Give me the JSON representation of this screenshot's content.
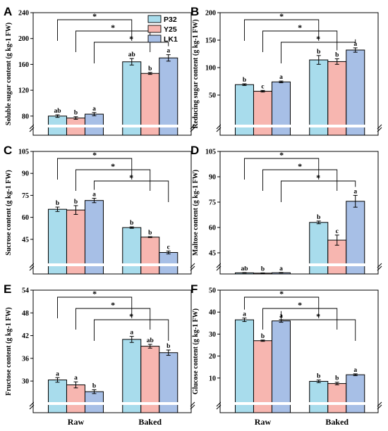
{
  "legend": [
    {
      "name": "P32",
      "color": "#a8dcec"
    },
    {
      "name": "Y25",
      "color": "#f7b6b0"
    },
    {
      "name": "LK1",
      "color": "#a7bfe6"
    }
  ],
  "categories": [
    "Raw",
    "Baked"
  ],
  "star_symbol": "*",
  "chart_data": [
    {
      "type": "bar",
      "panel": "A",
      "ylabel": "Soluble sugar content (g kg-1 FW)",
      "y_broken": true,
      "ylim": [
        70,
        240
      ],
      "yticks": [
        80,
        120,
        160,
        200,
        240
      ],
      "categories": [
        "Raw",
        "Baked"
      ],
      "series": [
        {
          "name": "P32",
          "values": [
            80,
            164
          ],
          "errors": [
            2,
            5
          ],
          "letters": [
            "ab",
            "ab"
          ]
        },
        {
          "name": "Y25",
          "values": [
            77,
            146
          ],
          "errors": [
            2,
            1.5
          ],
          "letters": [
            "b",
            "b"
          ]
        },
        {
          "name": "LK1",
          "values": [
            83,
            170
          ],
          "errors": [
            2.5,
            5
          ],
          "letters": [
            "a",
            "a"
          ]
        }
      ],
      "significance": [
        "*",
        "*",
        "*"
      ]
    },
    {
      "type": "bar",
      "panel": "B",
      "ylabel": "Reducing sugar content (g kg-1 FW)",
      "y_broken": true,
      "ylim": [
        0,
        200
      ],
      "yticks": [
        50,
        100,
        150,
        200
      ],
      "categories": [
        "Raw",
        "Baked"
      ],
      "series": [
        {
          "name": "P32",
          "values": [
            69,
            114
          ],
          "errors": [
            1.5,
            8
          ],
          "letters": [
            "b",
            "b"
          ]
        },
        {
          "name": "Y25",
          "values": [
            57,
            111
          ],
          "errors": [
            1.5,
            5
          ],
          "letters": [
            "c",
            "b"
          ]
        },
        {
          "name": "LK1",
          "values": [
            74,
            132
          ],
          "errors": [
            1.5,
            4
          ],
          "letters": [
            "a",
            "a"
          ]
        }
      ],
      "significance": [
        "*",
        "*",
        "*"
      ]
    },
    {
      "type": "bar",
      "panel": "C",
      "ylabel": "Sucrose content (g kg-1 FW)",
      "y_broken": true,
      "ylim": [
        30,
        105
      ],
      "yticks": [
        45,
        60,
        75,
        90,
        105
      ],
      "categories": [
        "Raw",
        "Baked"
      ],
      "series": [
        {
          "name": "P32",
          "values": [
            65.5,
            53
          ],
          "errors": [
            1.5,
            0.5
          ],
          "letters": [
            "b",
            "b"
          ]
        },
        {
          "name": "Y25",
          "values": [
            65,
            46.5
          ],
          "errors": [
            3,
            0.3
          ],
          "letters": [
            "b",
            "b"
          ]
        },
        {
          "name": "LK1",
          "values": [
            71.5,
            36
          ],
          "errors": [
            1.5,
            1
          ],
          "letters": [
            "a",
            "c"
          ]
        }
      ],
      "significance": [
        "*",
        "*",
        "*"
      ]
    },
    {
      "type": "bar",
      "panel": "D",
      "ylabel": "Maltose content (g kg-1 FW)",
      "y_broken": true,
      "ylim": [
        40,
        105
      ],
      "yticks": [
        45,
        60,
        75,
        90,
        105
      ],
      "categories": [
        "Raw",
        "Baked"
      ],
      "series": [
        {
          "name": "P32",
          "values": [
            3.5,
            63
          ],
          "errors": [
            0.8,
            0.8
          ],
          "letters": [
            "ab",
            "b"
          ]
        },
        {
          "name": "Y25",
          "values": [
            2.5,
            52.5
          ],
          "errors": [
            0.8,
            3
          ],
          "letters": [
            "b",
            "c"
          ]
        },
        {
          "name": "LK1",
          "values": [
            3.8,
            75.5
          ],
          "errors": [
            0.8,
            3.5
          ],
          "letters": [
            "a",
            "a"
          ]
        }
      ],
      "significance": [
        "*",
        "*",
        "*"
      ]
    },
    {
      "type": "bar",
      "panel": "E",
      "ylabel": "Fructose content (g kg-1 FW)",
      "y_broken": true,
      "ylim": [
        25,
        54
      ],
      "yticks": [
        30,
        36,
        42,
        48,
        54
      ],
      "categories": [
        "Raw",
        "Baked"
      ],
      "series": [
        {
          "name": "P32",
          "values": [
            30.3,
            41
          ],
          "errors": [
            0.6,
            0.8
          ],
          "letters": [
            "a",
            "a"
          ]
        },
        {
          "name": "Y25",
          "values": [
            29,
            39.2
          ],
          "errors": [
            0.8,
            0.5
          ],
          "letters": [
            "a",
            "ab"
          ]
        },
        {
          "name": "LK1",
          "values": [
            27.2,
            37.5
          ],
          "errors": [
            0.5,
            0.7
          ],
          "letters": [
            "b",
            "b"
          ]
        }
      ],
      "significance": [
        "*",
        "*",
        "*"
      ]
    },
    {
      "type": "bar",
      "panel": "F",
      "ylabel": "Glucose content (g kg-1 FW)",
      "y_broken": true,
      "ylim": [
        0,
        50
      ],
      "yticks": [
        10,
        20,
        30,
        40,
        50
      ],
      "categories": [
        "Raw",
        "Baked"
      ],
      "series": [
        {
          "name": "P32",
          "values": [
            36.5,
            8.5
          ],
          "errors": [
            0.8,
            0.6
          ],
          "letters": [
            "a",
            "b"
          ]
        },
        {
          "name": "Y25",
          "values": [
            27,
            7.5
          ],
          "errors": [
            0.3,
            0.6
          ],
          "letters": [
            "b",
            "b"
          ]
        },
        {
          "name": "LK1",
          "values": [
            36,
            11.5
          ],
          "errors": [
            0.6,
            0.4
          ],
          "letters": [
            "a",
            "a"
          ]
        }
      ],
      "significance": [
        "*",
        "*",
        "*"
      ]
    }
  ]
}
